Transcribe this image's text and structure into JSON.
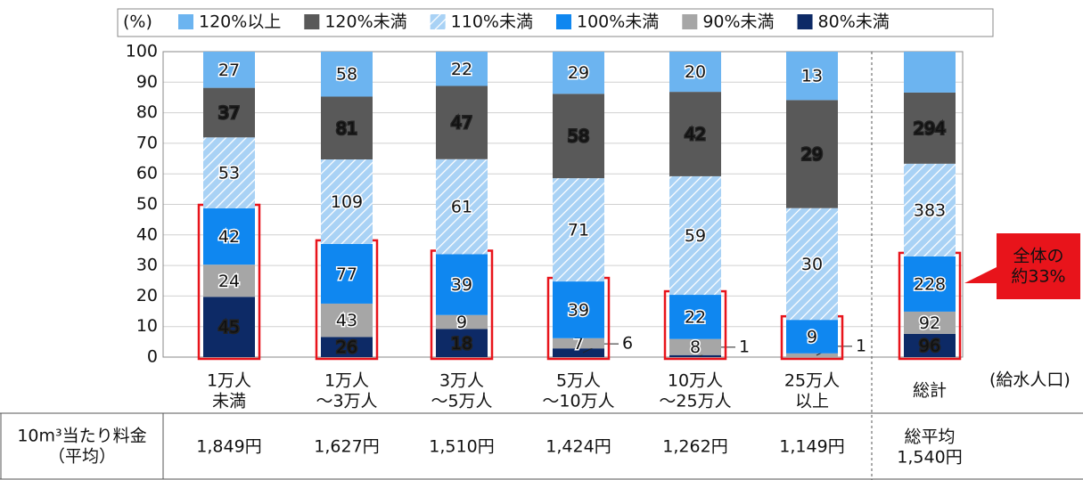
{
  "chart_data": {
    "type": "bar",
    "stacking": "percent",
    "y_unit_label": "(%)",
    "x_axis_label": "(給水人口)",
    "categories": [
      "1万人\n未満",
      "1万人\n～3万人",
      "3万人\n～5万人",
      "5万人\n～10万人",
      "10万人\n～25万人",
      "25万人\n以上",
      "総計"
    ],
    "series": [
      {
        "name": "80%未満",
        "color": "#0d2a66",
        "values": [
          45,
          26,
          18,
          6,
          1,
          0,
          96
        ],
        "value_labels": [
          45,
          26,
          18,
          6,
          1,
          null,
          96
        ]
      },
      {
        "name": "90%未満",
        "color": "#a6a6a6",
        "values": [
          24,
          43,
          9,
          7,
          8,
          1,
          92
        ]
      },
      {
        "name": "100%未満",
        "color": "#0f87f0",
        "values": [
          42,
          77,
          39,
          39,
          22,
          9,
          228
        ]
      },
      {
        "name": "110%未満",
        "color": "#a9d2f5",
        "hatch": true,
        "values": [
          53,
          109,
          61,
          71,
          59,
          30,
          383
        ]
      },
      {
        "name": "120%未満",
        "color": "#595959",
        "values": [
          37,
          81,
          47,
          58,
          42,
          29,
          294
        ]
      },
      {
        "name": "120%以上",
        "color": "#6cb4f0",
        "values": [
          27,
          58,
          22,
          29,
          20,
          13,
          169
        ],
        "value_labels": [
          27,
          58,
          22,
          29,
          20,
          13,
          null
        ]
      }
    ],
    "ylim": [
      0,
      100
    ],
    "yticks": [
      0,
      10,
      20,
      30,
      40,
      50,
      60,
      70,
      80,
      90,
      100
    ],
    "grid": true,
    "annotation": "全体の\n約33%",
    "table": {
      "header": "10m³当たり料金\n（平均）",
      "cells": [
        "1,849円",
        "1,627円",
        "1,510円",
        "1,424円",
        "1,262円",
        "1,149円",
        "総平均\n1,540円"
      ]
    }
  }
}
